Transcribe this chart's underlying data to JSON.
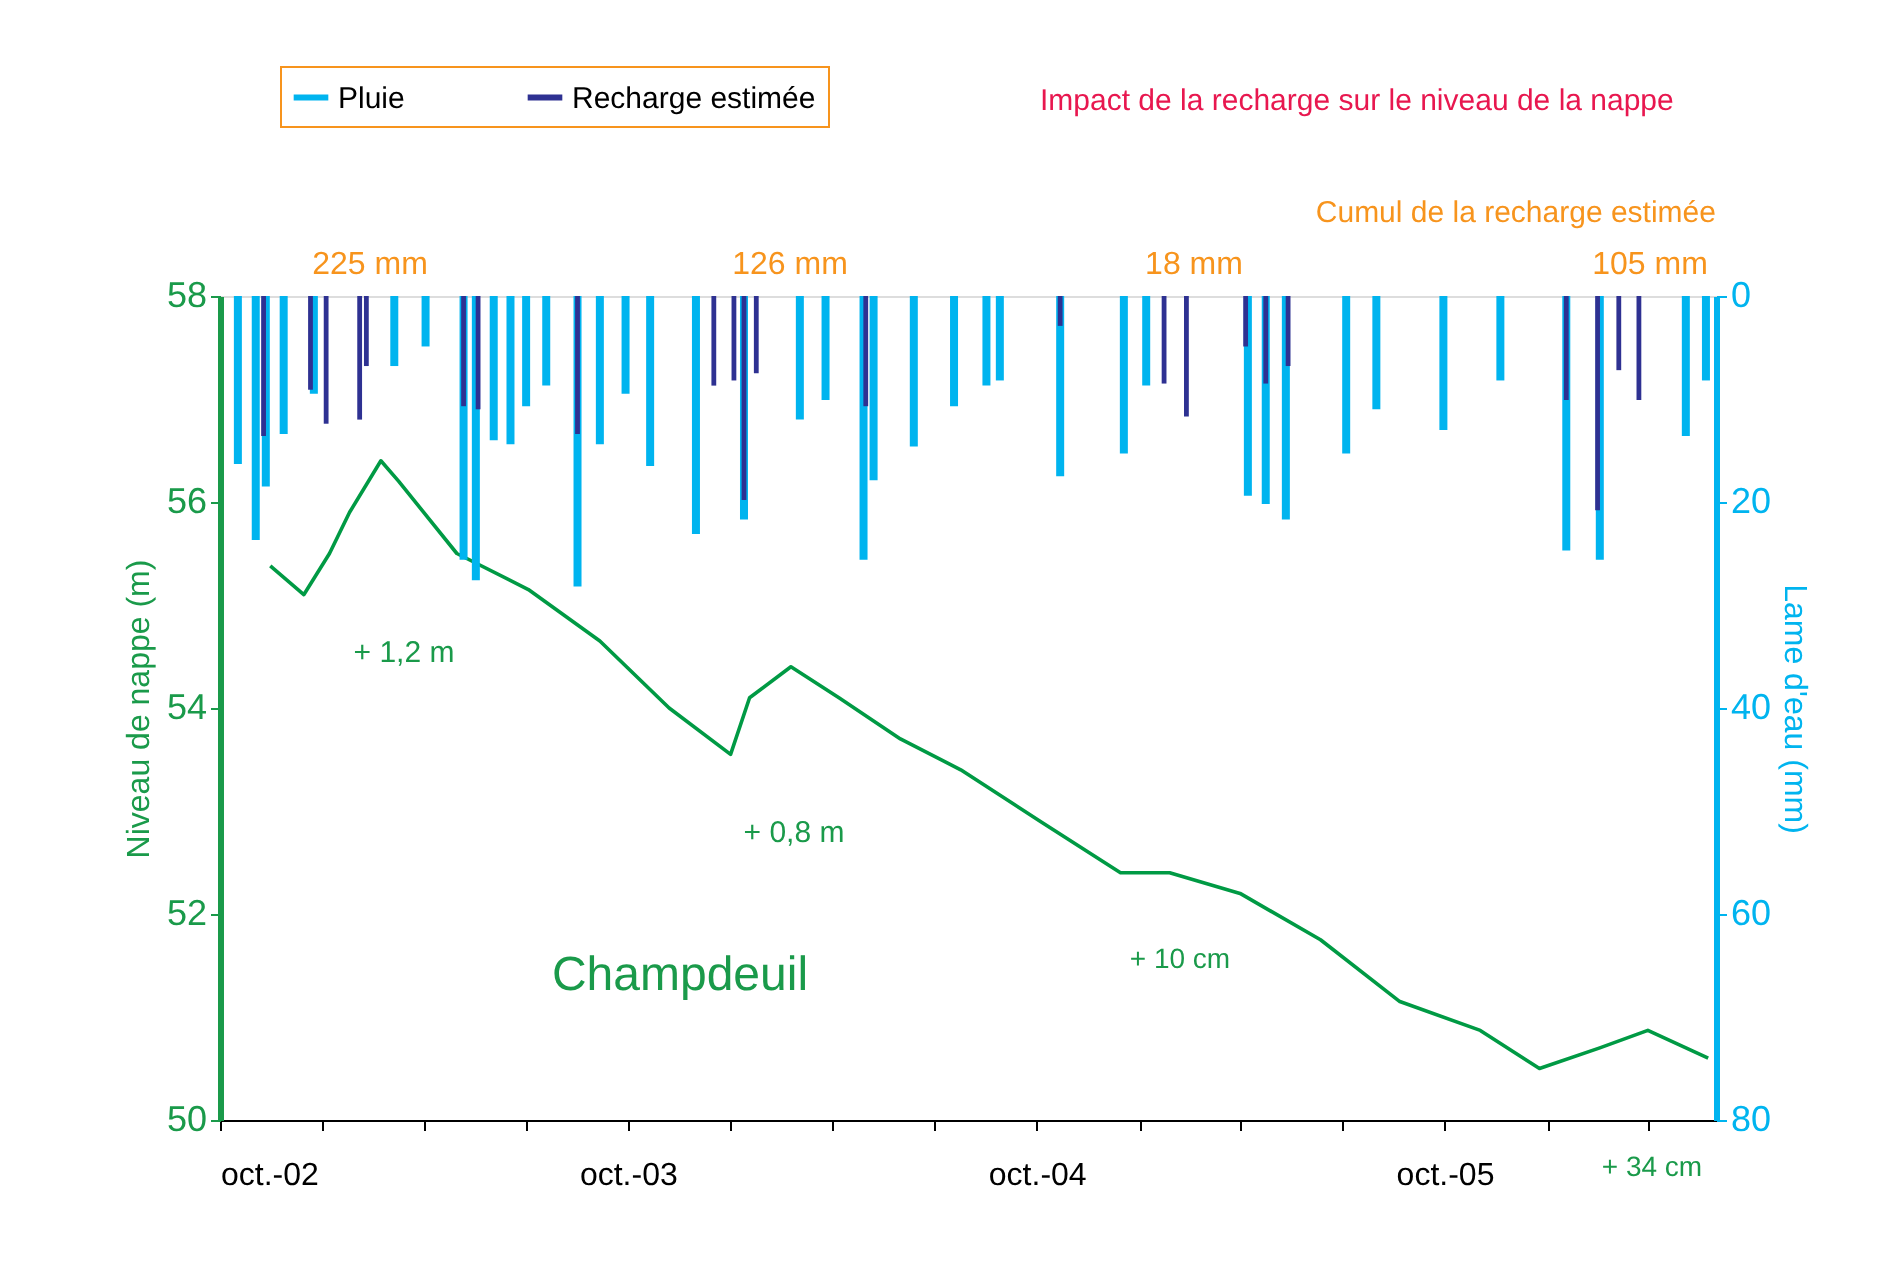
{
  "chart_data": {
    "type": "line",
    "ylabel": "Niveau de nappe (m)",
    "y2label": "Lame d'eau (mm)",
    "legend": "top",
    "xlim": [
      "2002-10-01",
      "2006-06-01"
    ],
    "xticks": [
      {
        "value": "2002-10-01",
        "label": "oct.-02"
      },
      {
        "value": "2003-01-01",
        "label": null
      },
      {
        "value": "2003-04-01",
        "label": null
      },
      {
        "value": "2003-07-01",
        "label": null
      },
      {
        "value": "2003-10-01",
        "label": "oct.-03"
      },
      {
        "value": "2004-01-01",
        "label": null
      },
      {
        "value": "2004-04-01",
        "label": null
      },
      {
        "value": "2004-07-01",
        "label": null
      },
      {
        "value": "2004-10-01",
        "label": "oct.-04"
      },
      {
        "value": "2005-01-01",
        "label": null
      },
      {
        "value": "2005-04-01",
        "label": null
      },
      {
        "value": "2005-07-01",
        "label": null
      },
      {
        "value": "2005-10-01",
        "label": "oct.-05"
      },
      {
        "value": "2006-01-01",
        "label": null
      },
      {
        "value": "2006-04-01",
        "label": null
      }
    ],
    "ylim": [
      50,
      58
    ],
    "yticks": [
      50,
      52,
      54,
      56,
      58
    ],
    "y2lim": [
      80,
      0
    ],
    "y2ticks": [
      0,
      20,
      40,
      60,
      80
    ],
    "series": [
      {
        "name": "Pluie",
        "type": "bar",
        "axis": "y2",
        "color": "#00b4ef",
        "x": [
          "2002-10-17",
          "2002-11-02",
          "2002-11-11",
          "2002-11-27",
          "2002-12-24",
          "2003-03-06",
          "2003-04-03",
          "2003-05-07",
          "2003-05-18",
          "2003-06-03",
          "2003-06-18",
          "2003-07-02",
          "2003-07-20",
          "2003-08-17",
          "2003-09-06",
          "2003-09-29",
          "2003-10-21",
          "2003-12-01",
          "2004-01-13",
          "2004-03-03",
          "2004-03-26",
          "2004-04-29",
          "2004-05-08",
          "2004-06-13",
          "2004-07-19",
          "2004-08-17",
          "2004-08-29",
          "2004-10-22",
          "2004-12-18",
          "2005-01-07",
          "2005-04-08",
          "2005-04-24",
          "2005-05-12",
          "2005-07-05",
          "2005-08-01",
          "2005-09-30",
          "2005-11-20",
          "2006-01-18",
          "2006-02-17",
          "2006-05-05",
          "2006-05-23"
        ],
        "values": [
          16.3,
          23.7,
          18.5,
          13.4,
          9.5,
          6.8,
          4.9,
          25.6,
          27.6,
          14,
          14.4,
          10.7,
          8.7,
          28.2,
          14.4,
          9.5,
          16.5,
          23.1,
          21.7,
          12,
          10.1,
          25.6,
          17.9,
          14.6,
          10.7,
          8.7,
          8.2,
          17.5,
          15.3,
          8.7,
          19.4,
          20.2,
          21.7,
          15.3,
          11,
          13,
          8.2,
          24.7,
          25.6,
          13.6,
          8.2
        ]
      },
      {
        "name": "Recharge estimée",
        "type": "bar",
        "axis": "y2",
        "color": "#2e3192",
        "x": [
          "2002-11-09",
          "2002-12-21",
          "2003-01-04",
          "2003-02-03",
          "2003-02-09",
          "2003-05-07",
          "2003-05-20",
          "2003-08-17",
          "2003-12-17",
          "2004-01-04",
          "2004-01-13",
          "2004-01-24",
          "2004-05-01",
          "2004-10-22",
          "2005-01-23",
          "2005-02-12",
          "2005-04-06",
          "2005-04-24",
          "2005-05-14",
          "2006-01-18",
          "2006-02-15",
          "2006-03-06",
          "2006-03-24"
        ],
        "values": [
          13.6,
          9.1,
          12.4,
          12,
          6.8,
          10.7,
          11,
          13.4,
          8.7,
          8.2,
          19.8,
          7.5,
          10.7,
          2.9,
          8.5,
          11.7,
          4.9,
          8.5,
          6.8,
          10.1,
          20.8,
          7.2,
          10.1
        ]
      },
      {
        "axis": "y",
        "color": "#009a44",
        "x": [
          "2002-11-15",
          "2002-12-15",
          "2003-01-07",
          "2003-01-25",
          "2003-02-22",
          "2003-03-10",
          "2003-05-01",
          "2003-07-04",
          "2003-09-06",
          "2003-11-07",
          "2004-01-01",
          "2004-01-18",
          "2004-02-24",
          "2004-04-07",
          "2004-06-01",
          "2004-07-25",
          "2004-10-04",
          "2004-12-15",
          "2005-01-28",
          "2005-04-01",
          "2005-06-12",
          "2005-08-22",
          "2005-11-02",
          "2005-12-25",
          "2006-02-17",
          "2006-04-01",
          "2006-05-25"
        ],
        "values": [
          55.38,
          55.1,
          55.5,
          55.9,
          56.4,
          56.2,
          55.5,
          55.15,
          54.65,
          54.0,
          53.55,
          54.1,
          54.4,
          54.1,
          53.7,
          53.4,
          52.9,
          52.4,
          52.4,
          52.2,
          51.75,
          51.15,
          50.87,
          50.5,
          50.7,
          50.87,
          50.6
        ]
      }
    ],
    "annotations": [
      "Cumul de la recharge estimée",
      "Impact de la recharge sur le niveau de la nappe",
      "Champdeuil",
      "225 mm",
      "126 mm",
      "18 mm",
      "105 mm",
      "+ 1,2 m",
      "+ 0,8 m",
      "+ 10 cm",
      "+ 34 cm"
    ]
  }
}
